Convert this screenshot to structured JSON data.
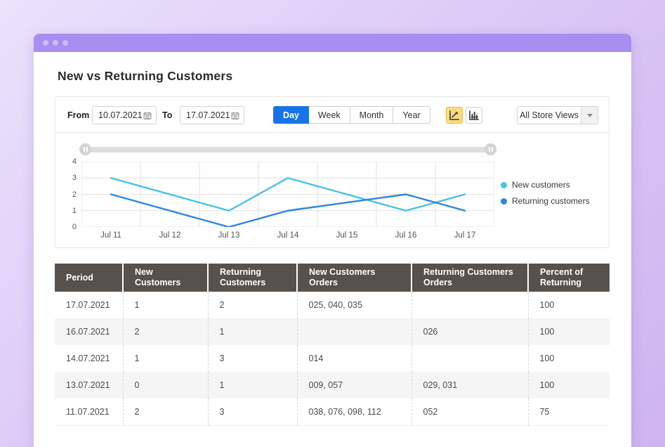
{
  "page": {
    "title": "New vs Returning Customers"
  },
  "filters": {
    "from_label": "From",
    "from_value": "10.07.2021",
    "to_label": "To",
    "to_value": "17.07.2021",
    "period_buttons": [
      {
        "label": "Day",
        "active": true
      },
      {
        "label": "Week",
        "active": false
      },
      {
        "label": "Month",
        "active": false
      },
      {
        "label": "Year",
        "active": false
      }
    ],
    "chart_type_buttons": [
      {
        "icon": "line-chart",
        "active": true
      },
      {
        "icon": "bar-chart",
        "active": false
      }
    ],
    "store_view": {
      "value": "All Store Views",
      "icon": "caret-down"
    }
  },
  "icons": {
    "calendar": "calendar-grid",
    "line_chart": "axis-with-rising-arrow",
    "bar_chart": "axis-with-bars",
    "caret_down": "down-triangle",
    "slider_handle": "pause-grip",
    "window_dots": "three-circles"
  },
  "colors": {
    "accent_blue": "#1774e8",
    "active_icon_bg": "#fbdc7d",
    "table_header_bg": "#56514c",
    "titlebar": "#a78ef0",
    "series_light_blue": "#44c3ea",
    "series_dark_blue": "#2d87e0"
  },
  "chart_data": {
    "type": "line",
    "x": [
      "Jul 11",
      "Jul 12",
      "Jul 13",
      "Jul 14",
      "Jul 15",
      "Jul 16",
      "Jul 17"
    ],
    "y_ticks": [
      0,
      1,
      2,
      3,
      4
    ],
    "ylim": [
      0,
      4
    ],
    "grid": true,
    "legend_position": "right",
    "series": [
      {
        "name": "New customers",
        "color": "#44c3ea",
        "points": [
          {
            "day": 0,
            "value": 3
          },
          {
            "day": 2,
            "value": 1
          },
          {
            "day": 3,
            "value": 3
          },
          {
            "day": 5,
            "value": 1
          },
          {
            "day": 6,
            "value": 2
          }
        ]
      },
      {
        "name": "Returning customers",
        "color": "#2d87e0",
        "points": [
          {
            "day": 0,
            "value": 2
          },
          {
            "day": 2,
            "value": 0
          },
          {
            "day": 3,
            "value": 1
          },
          {
            "day": 5,
            "value": 2
          },
          {
            "day": 6,
            "value": 1
          }
        ]
      }
    ]
  },
  "table": {
    "columns": [
      "Period",
      "New Customers",
      "Returning Customers",
      "New Customers Orders",
      "Returning Customers Orders",
      "Percent of Returning"
    ],
    "rows": [
      [
        "17.07.2021",
        "1",
        "2",
        "025, 040, 035",
        "",
        "100"
      ],
      [
        "16.07.2021",
        "2",
        "1",
        "",
        "026",
        "100"
      ],
      [
        "14.07.2021",
        "1",
        "3",
        "014",
        "",
        "100"
      ],
      [
        "13.07.2021",
        "0",
        "1",
        "009, 057",
        "029, 031",
        "100"
      ],
      [
        "11.07.2021",
        "2",
        "3",
        "038, 076, 098, 112",
        "052",
        "75"
      ]
    ]
  }
}
